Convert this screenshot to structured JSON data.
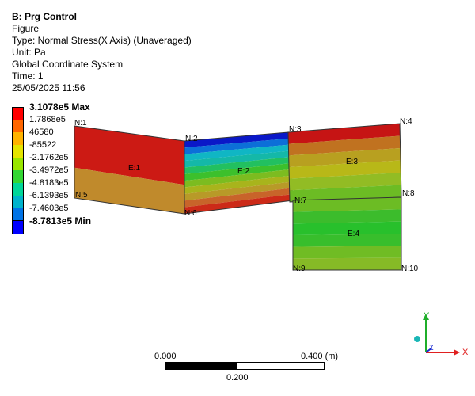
{
  "header": {
    "title": "B: Prg Control",
    "lines": [
      "Figure",
      "Type: Normal Stress(X Axis) (Unaveraged)",
      "Unit: Pa",
      "Global Coordinate System",
      "Time: 1",
      "25/05/2025 11:56"
    ]
  },
  "legend": {
    "labels": [
      "3.1078e5 Max",
      "1.7868e5",
      "46580",
      "-85522",
      "-2.1762e5",
      "-3.4972e5",
      "-4.8183e5",
      "-6.1393e5",
      "-7.4603e5",
      "-8.7813e5 Min"
    ],
    "colors": [
      "#ff0000",
      "#ff6600",
      "#ffb300",
      "#e5e500",
      "#99e600",
      "#33d633",
      "#00d699",
      "#00b3cc",
      "#0073e6",
      "#0000ff"
    ]
  },
  "model": {
    "nodes": [
      "N:1",
      "N:2",
      "N:3",
      "N:4",
      "N:5",
      "N:6",
      "N:7",
      "N:8",
      "N:9",
      "N:10"
    ],
    "elements": [
      "E:1",
      "E:2",
      "E:3",
      "E:4"
    ]
  },
  "scale_bar": {
    "label_start": "0.000",
    "label_end": "0.400 (m)",
    "label_mid": "0.200"
  },
  "triad": {
    "x": "X",
    "y": "Y",
    "z": "Z"
  },
  "colors": {
    "e1_top": "#cc1a14",
    "e1_bottom": "#c08a2c",
    "e2_bands": [
      "#0a18c8",
      "#0c6fd8",
      "#10b6c4",
      "#14b8a8",
      "#22c060",
      "#3cc02c",
      "#7cbc20",
      "#a8b41c",
      "#b89a28",
      "#c8642a",
      "#cc2a18"
    ],
    "e3_bands": [
      "#c61414",
      "#c07220",
      "#b8a020",
      "#b8b818",
      "#92bc24",
      "#6cbc24"
    ],
    "e4_bands": [
      "#6cbc24",
      "#3cbc2c",
      "#28c02c",
      "#38be2c",
      "#70bc24",
      "#86ba26"
    ]
  }
}
